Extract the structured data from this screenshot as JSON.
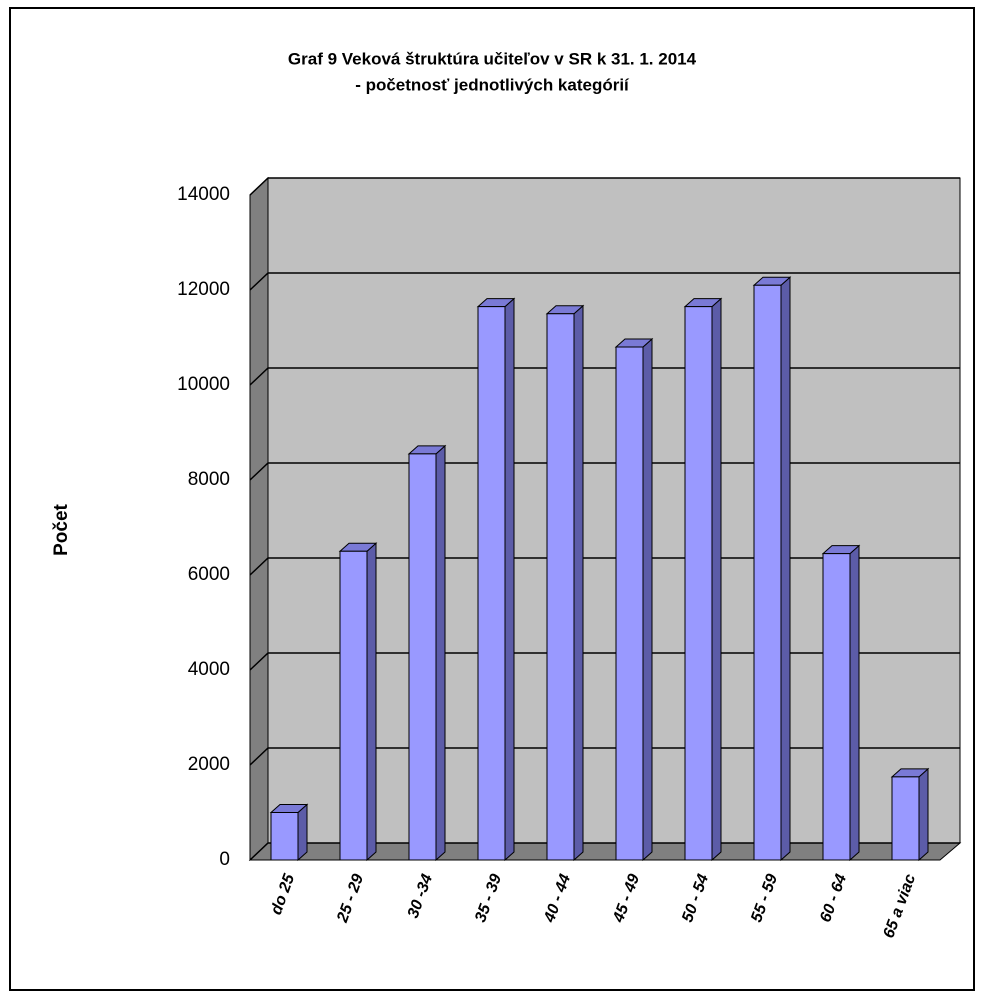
{
  "chart_data": {
    "type": "bar",
    "title": [
      "Graf 9 Veková štruktúra učiteľov v SR k  31. 1. 2014",
      "- početnosť jednotlivých kategórií"
    ],
    "y_label": "Počet",
    "categories": [
      "do 25",
      "25 - 29",
      "30 -34",
      "35 - 39",
      "40 - 44",
      "45 - 49",
      "50 - 54",
      "55 - 59",
      "60 - 64",
      "65 a viac"
    ],
    "values": [
      1000,
      6500,
      8550,
      11650,
      11500,
      10800,
      11650,
      12100,
      6450,
      1750
    ],
    "color": "#9999ff",
    "ylim": [
      0,
      14000
    ],
    "yticks": [
      0,
      2000,
      4000,
      6000,
      8000,
      10000,
      12000,
      14000
    ],
    "grid": true
  }
}
